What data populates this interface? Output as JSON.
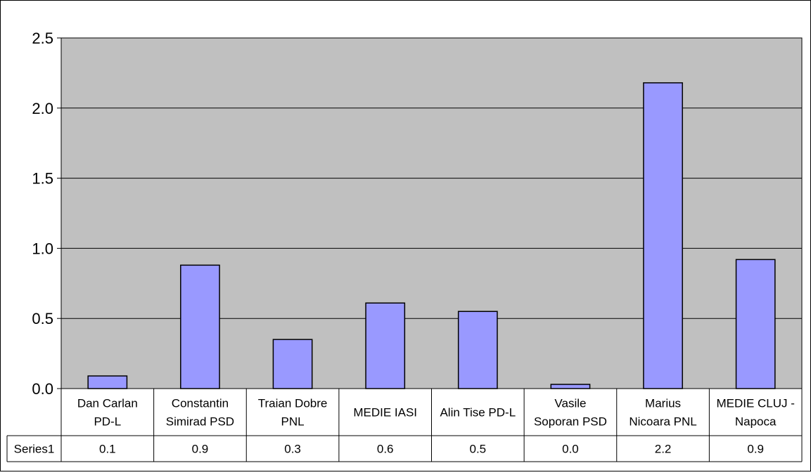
{
  "chart_data": {
    "type": "bar",
    "title": "",
    "xlabel": "",
    "ylabel": "",
    "ylim": [
      0,
      2.5
    ],
    "yticks": [
      "0.0",
      "0.5",
      "1.0",
      "1.5",
      "2.0",
      "2.5"
    ],
    "grid": true,
    "legend": "none",
    "categories": [
      [
        "Dan Carlan",
        "PD-L"
      ],
      [
        "Constantin",
        "Simirad PSD"
      ],
      [
        "Traian Dobre",
        "PNL"
      ],
      [
        "MEDIE IASI"
      ],
      [
        "Alin Tise PD-L"
      ],
      [
        "Vasile",
        "Soporan PSD"
      ],
      [
        "Marius",
        "Nicoara PNL"
      ],
      [
        "MEDIE CLUJ -",
        "Napoca"
      ]
    ],
    "series": [
      {
        "name": "Series1",
        "values": [
          0.09,
          0.88,
          0.35,
          0.61,
          0.55,
          0.03,
          2.18,
          0.92
        ],
        "table_labels": [
          "0.1",
          "0.9",
          "0.3",
          "0.6",
          "0.5",
          "0.0",
          "2.2",
          "0.9"
        ]
      }
    ],
    "colors": {
      "plot_background": "#c0c0c0",
      "bar_fill": "#9999ff",
      "bar_stroke": "#000000",
      "gridline": "#000000"
    }
  }
}
